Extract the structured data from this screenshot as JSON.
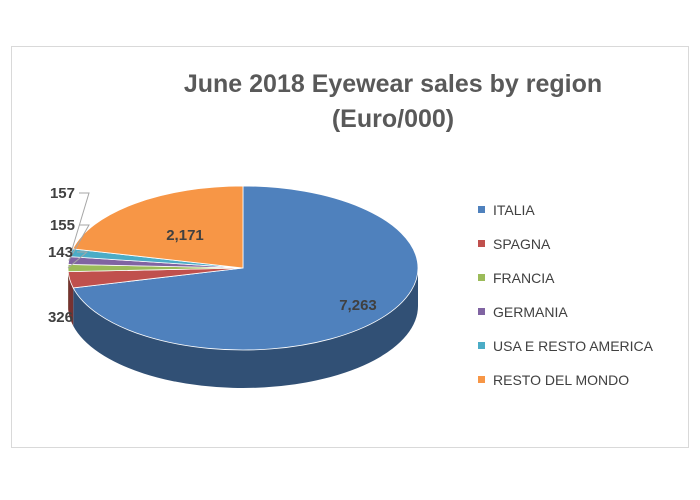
{
  "chart_data": {
    "type": "pie",
    "title": "June 2018 Eyewear sales by region",
    "subtitle": "(Euro/000)",
    "three_d": true,
    "legend_position": "right",
    "categories": [
      "ITALIA",
      "SPAGNA",
      "FRANCIA",
      "GERMANIA",
      "USA E RESTO AMERICA",
      "RESTO DEL MONDO"
    ],
    "values": [
      7263,
      326,
      143,
      155,
      157,
      2171
    ],
    "value_labels": [
      "7,263",
      "326",
      "143",
      "155",
      "157",
      "2,171"
    ],
    "colors": [
      "#4f81bd",
      "#c0504d",
      "#9bbb59",
      "#8064a2",
      "#4bacc6",
      "#f79646"
    ]
  }
}
